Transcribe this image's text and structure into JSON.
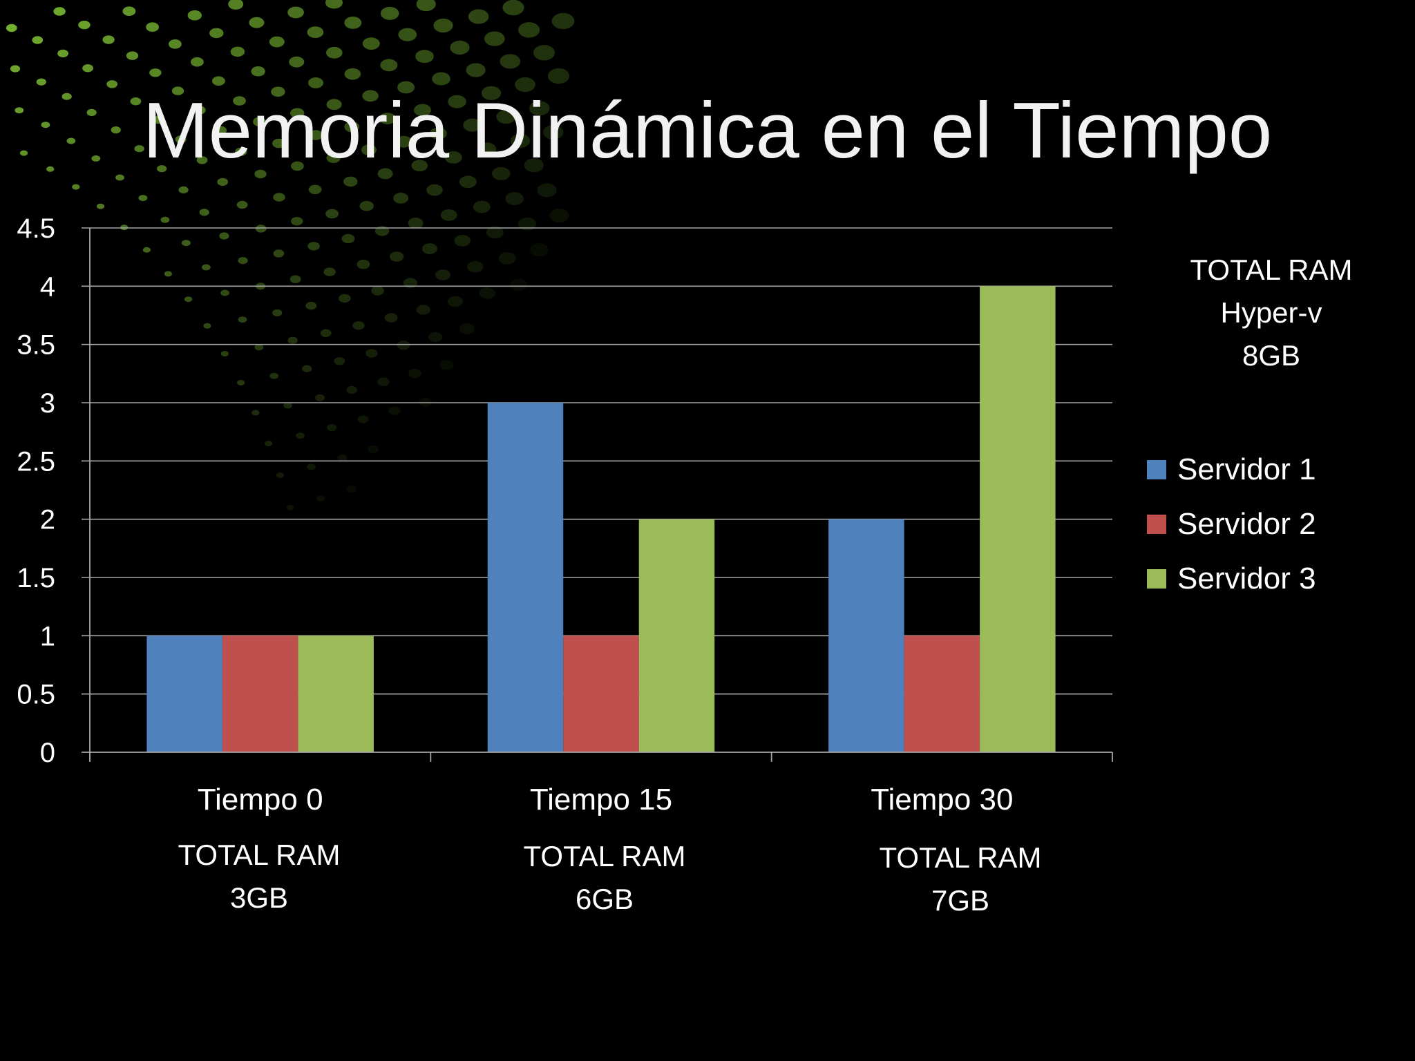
{
  "slide": {
    "title": "Memoria Dinámica en el Tiempo"
  },
  "chart_data": {
    "type": "bar",
    "categories": [
      "Tiempo 0",
      "Tiempo 15",
      "Tiempo 30"
    ],
    "series": [
      {
        "name": "Servidor 1",
        "values": [
          1,
          3,
          2
        ],
        "color": "#4f81bd"
      },
      {
        "name": "Servidor 2",
        "values": [
          1,
          1,
          1
        ],
        "color": "#c0504d"
      },
      {
        "name": "Servidor 3",
        "values": [
          1,
          2,
          4
        ],
        "color": "#9bbb59"
      }
    ],
    "ylim": [
      0,
      4.5
    ],
    "y_ticks": [
      "0",
      "0.5",
      "1",
      "1.5",
      "2",
      "2.5",
      "3",
      "3.5",
      "4",
      "4.5"
    ],
    "grid": true,
    "legend_position": "right"
  },
  "annotations": {
    "total_hyperv": [
      "TOTAL RAM",
      "Hyper-v",
      "8GB"
    ],
    "category_totals": [
      [
        "TOTAL RAM",
        "3GB"
      ],
      [
        "TOTAL RAM",
        "6GB"
      ],
      [
        "TOTAL RAM",
        "7GB"
      ]
    ]
  },
  "theme": {
    "background": "#000000",
    "dot_color": "#8cd63a",
    "gridline": "#a6a6a6",
    "text": "#ffffff"
  }
}
